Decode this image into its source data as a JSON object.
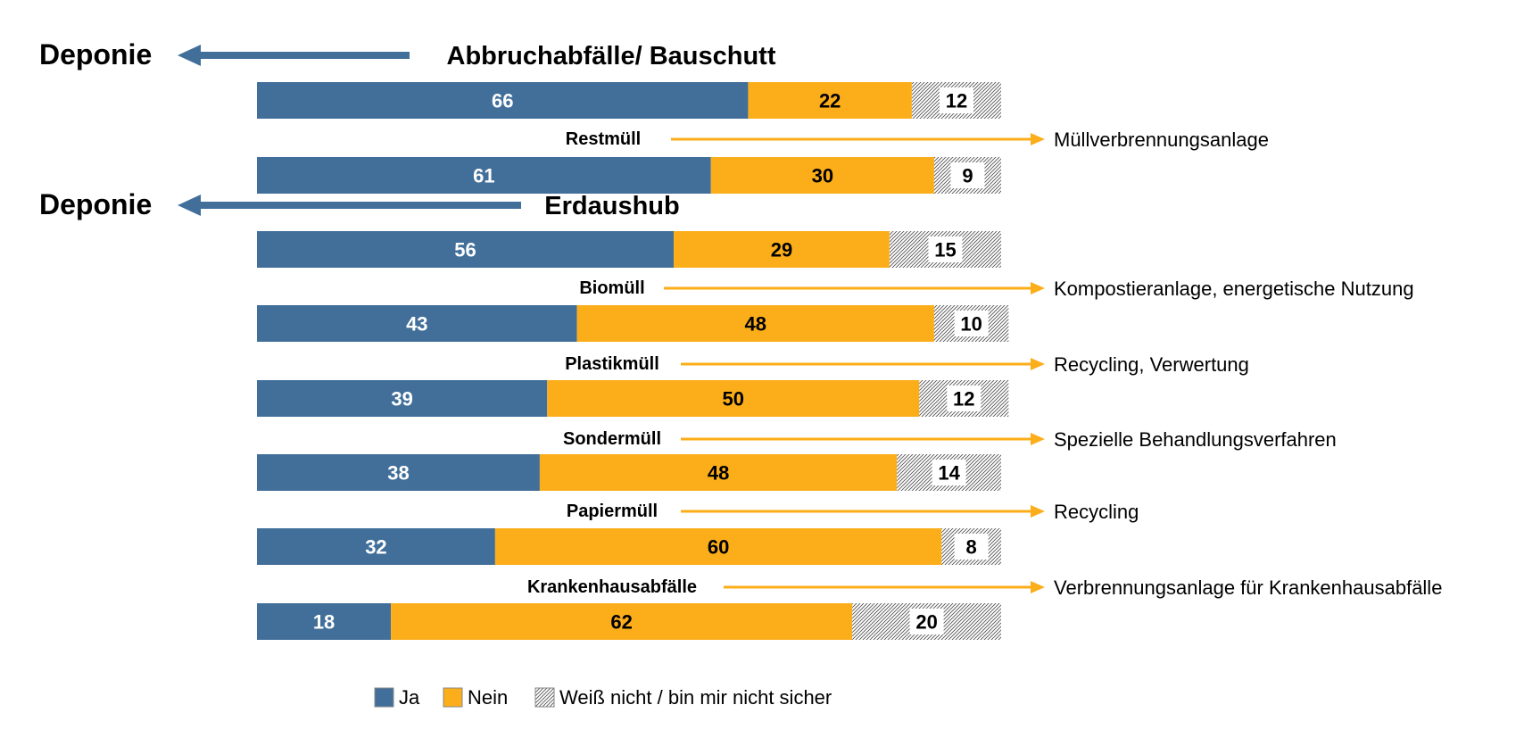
{
  "chart_data": {
    "type": "bar",
    "orientation": "horizontal",
    "stacked": true,
    "xlim": [
      0,
      100
    ],
    "categories": [
      "Abbruchabfälle/ Bauschutt",
      "Restmüll",
      "Erdaushub",
      "Biomüll",
      "Plastikmüll",
      "Sondermüll",
      "Papiermüll",
      "Krankenhausabfälle"
    ],
    "series": [
      {
        "name": "Ja",
        "color": "#416f9a",
        "values": [
          66,
          61,
          56,
          43,
          39,
          38,
          32,
          18
        ]
      },
      {
        "name": "Nein",
        "color": "#fbae1a",
        "values": [
          22,
          30,
          29,
          48,
          50,
          48,
          60,
          62
        ]
      },
      {
        "name": "Weiß nicht / bin mir nicht sicher",
        "color": "hatched",
        "values": [
          12,
          9,
          15,
          10,
          12,
          14,
          8,
          20
        ]
      }
    ],
    "destinations": [
      "Deponie",
      "Müllverbrennungsanlage",
      "Deponie",
      "Kompostieranlage, energetische Nutzung",
      "Recycling, Verwertung",
      "Spezielle Behandlungsverfahren",
      "Recycling",
      "Verbrennungsanlage für Krankenhausabfälle"
    ],
    "destination_direction": [
      "left",
      "right",
      "left",
      "right",
      "right",
      "right",
      "right",
      "right"
    ],
    "legend_position": "bottom",
    "grid": false
  },
  "colors": {
    "ja": "#416f9a",
    "nein": "#fbae1a",
    "arrow_left": "#416f9a",
    "arrow_right": "#fbae1a"
  }
}
